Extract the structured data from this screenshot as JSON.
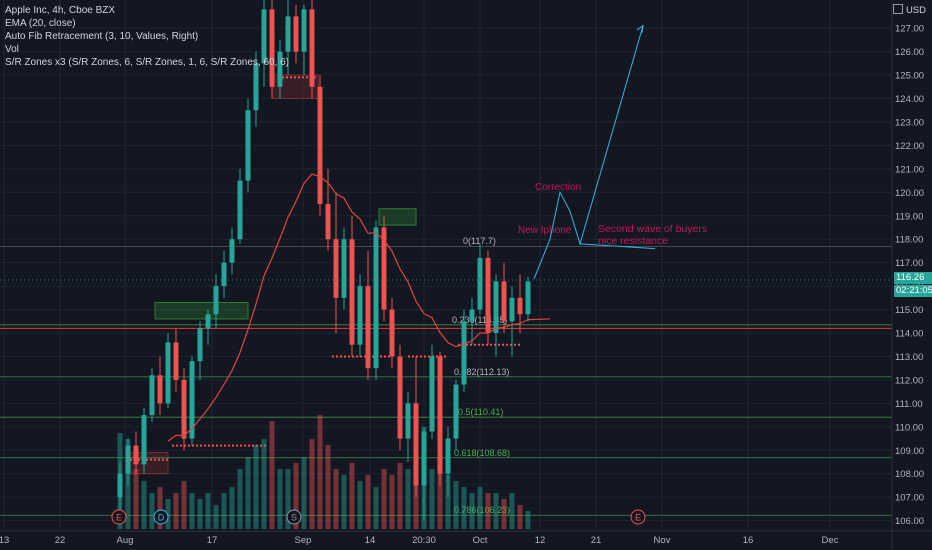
{
  "legend": {
    "symbol": "Apple Inc, 4h, Cboe BZX",
    "ema": "EMA (20, close)",
    "fib": "Auto Fib Retracement (3, 10, Values, Right)",
    "vol": "Vol",
    "sr": "S/R Zones x3 (S/R Zones, 6, S/R Zones, 1, 6, S/R Zones, 60, 6)"
  },
  "currency": "USD",
  "last_price": "116.26",
  "countdown": "02:21:05",
  "colors": {
    "background": "#131722",
    "up": "#26a69a",
    "down": "#ef5350",
    "ema": "#e0473d",
    "fib_line": "#4caf50",
    "projection": "#3bb3e4",
    "annotation": "#c2185b",
    "resistance": "#e53935"
  },
  "annotations": {
    "correction": "Correction",
    "new_iphone": "New Iphone",
    "second_wave": "Second wave of buyers",
    "nice_resistance": "nice resistance"
  },
  "event_markers": [
    "E",
    "D",
    "S",
    "E"
  ],
  "chart_data": {
    "type": "candlestick",
    "title": "Apple Inc, 4h, Cboe BZX",
    "xlabel": "",
    "ylabel": "",
    "y_ticks": [
      "127.00",
      "126.00",
      "125.00",
      "124.00",
      "123.00",
      "122.00",
      "121.00",
      "120.00",
      "119.00",
      "118.00",
      "117.00",
      "116.00",
      "115.00",
      "114.00",
      "113.00",
      "112.00",
      "111.00",
      "110.00",
      "109.00",
      "108.00",
      "107.00",
      "106.00"
    ],
    "x_ticks": [
      "13",
      "22",
      "Aug",
      "17",
      "Sep",
      "14",
      "20:30",
      "Oct",
      "12",
      "21",
      "Nov",
      "16",
      "Dec"
    ],
    "ylim": [
      105.6,
      128.2
    ],
    "fib_levels": [
      {
        "label": "0(117.7)",
        "value": 117.7
      },
      {
        "label": "0.236(114.35)",
        "value": 114.35
      },
      {
        "label": "0.382(112.13)",
        "value": 112.13
      },
      {
        "label": "0.5(110.41)",
        "value": 110.41
      },
      {
        "label": "0.618(108.68)",
        "value": 108.68
      },
      {
        "label": "0.786(106.23)",
        "value": 106.23
      }
    ],
    "resistance_level": 114.2,
    "last_price": 116.26,
    "candles": [
      [
        107.0,
        108.5,
        106.5,
        108.0
      ],
      [
        108.0,
        109.5,
        107.5,
        109.2
      ],
      [
        109.2,
        109.8,
        108.0,
        108.4
      ],
      [
        108.4,
        110.8,
        108.0,
        110.5
      ],
      [
        110.5,
        112.5,
        110.2,
        112.2
      ],
      [
        112.2,
        113.0,
        110.5,
        111.0
      ],
      [
        111.0,
        114.0,
        110.8,
        113.6
      ],
      [
        113.6,
        114.2,
        111.5,
        112.0
      ],
      [
        112.0,
        112.5,
        109.0,
        109.5
      ],
      [
        109.5,
        113.0,
        109.2,
        112.8
      ],
      [
        112.8,
        114.5,
        112.0,
        114.2
      ],
      [
        114.2,
        115.0,
        113.5,
        114.8
      ],
      [
        114.8,
        116.5,
        114.2,
        116.0
      ],
      [
        116.0,
        117.5,
        115.5,
        117.0
      ],
      [
        117.0,
        118.5,
        116.5,
        118.0
      ],
      [
        118.0,
        121.0,
        117.8,
        120.5
      ],
      [
        120.5,
        124.0,
        120.0,
        123.5
      ],
      [
        123.5,
        126.0,
        122.8,
        125.5
      ],
      [
        125.5,
        128.3,
        124.5,
        127.8
      ],
      [
        127.8,
        128.5,
        124.0,
        124.5
      ],
      [
        124.5,
        126.5,
        124.0,
        126.0
      ],
      [
        126.0,
        128.2,
        125.0,
        127.5
      ],
      [
        127.5,
        128.0,
        125.5,
        126.0
      ],
      [
        126.0,
        128.0,
        125.0,
        127.8
      ],
      [
        127.8,
        128.2,
        124.0,
        124.5
      ],
      [
        124.5,
        125.0,
        119.0,
        119.5
      ],
      [
        119.5,
        121.0,
        117.5,
        118.0
      ],
      [
        118.0,
        120.0,
        114.0,
        115.5
      ],
      [
        115.5,
        118.5,
        115.0,
        118.0
      ],
      [
        118.0,
        119.0,
        113.0,
        113.5
      ],
      [
        113.5,
        116.5,
        113.0,
        116.0
      ],
      [
        116.0,
        117.5,
        112.0,
        112.5
      ],
      [
        112.5,
        118.8,
        112.0,
        118.5
      ],
      [
        118.5,
        119.0,
        114.5,
        115.0
      ],
      [
        115.0,
        115.5,
        112.5,
        113.0
      ],
      [
        113.0,
        113.5,
        109.0,
        109.5
      ],
      [
        109.5,
        111.5,
        108.5,
        111.0
      ],
      [
        111.0,
        113.0,
        107.0,
        107.5
      ],
      [
        107.5,
        110.0,
        106.0,
        109.8
      ],
      [
        109.8,
        113.5,
        109.5,
        113.0
      ],
      [
        113.0,
        113.2,
        107.5,
        108.0
      ],
      [
        108.0,
        110.0,
        107.0,
        109.5
      ],
      [
        109.5,
        112.0,
        109.0,
        111.8
      ],
      [
        111.8,
        115.0,
        111.5,
        114.5
      ],
      [
        114.5,
        115.5,
        113.5,
        115.0
      ],
      [
        115.0,
        117.8,
        114.8,
        117.2
      ],
      [
        117.2,
        117.5,
        113.5,
        114.0
      ],
      [
        114.0,
        116.5,
        113.0,
        116.2
      ],
      [
        116.2,
        117.0,
        114.0,
        114.5
      ],
      [
        114.5,
        116.0,
        113.0,
        115.5
      ],
      [
        115.5,
        116.5,
        114.0,
        114.8
      ],
      [
        114.8,
        116.4,
        114.5,
        116.2
      ]
    ],
    "volumes": [
      0.8,
      0.75,
      0.5,
      0.4,
      0.3,
      0.35,
      0.25,
      0.3,
      0.4,
      0.3,
      0.25,
      0.3,
      0.2,
      0.3,
      0.35,
      0.5,
      0.6,
      0.7,
      0.75,
      0.9,
      0.5,
      0.5,
      0.55,
      0.6,
      0.75,
      0.95,
      0.7,
      0.5,
      0.45,
      0.55,
      0.4,
      0.45,
      0.35,
      0.5,
      0.45,
      0.55,
      0.5,
      0.7,
      0.85,
      0.5,
      0.6,
      0.45,
      0.4,
      0.35,
      0.3,
      0.35,
      0.3,
      0.3,
      0.25,
      0.3,
      0.2,
      0.15
    ]
  }
}
